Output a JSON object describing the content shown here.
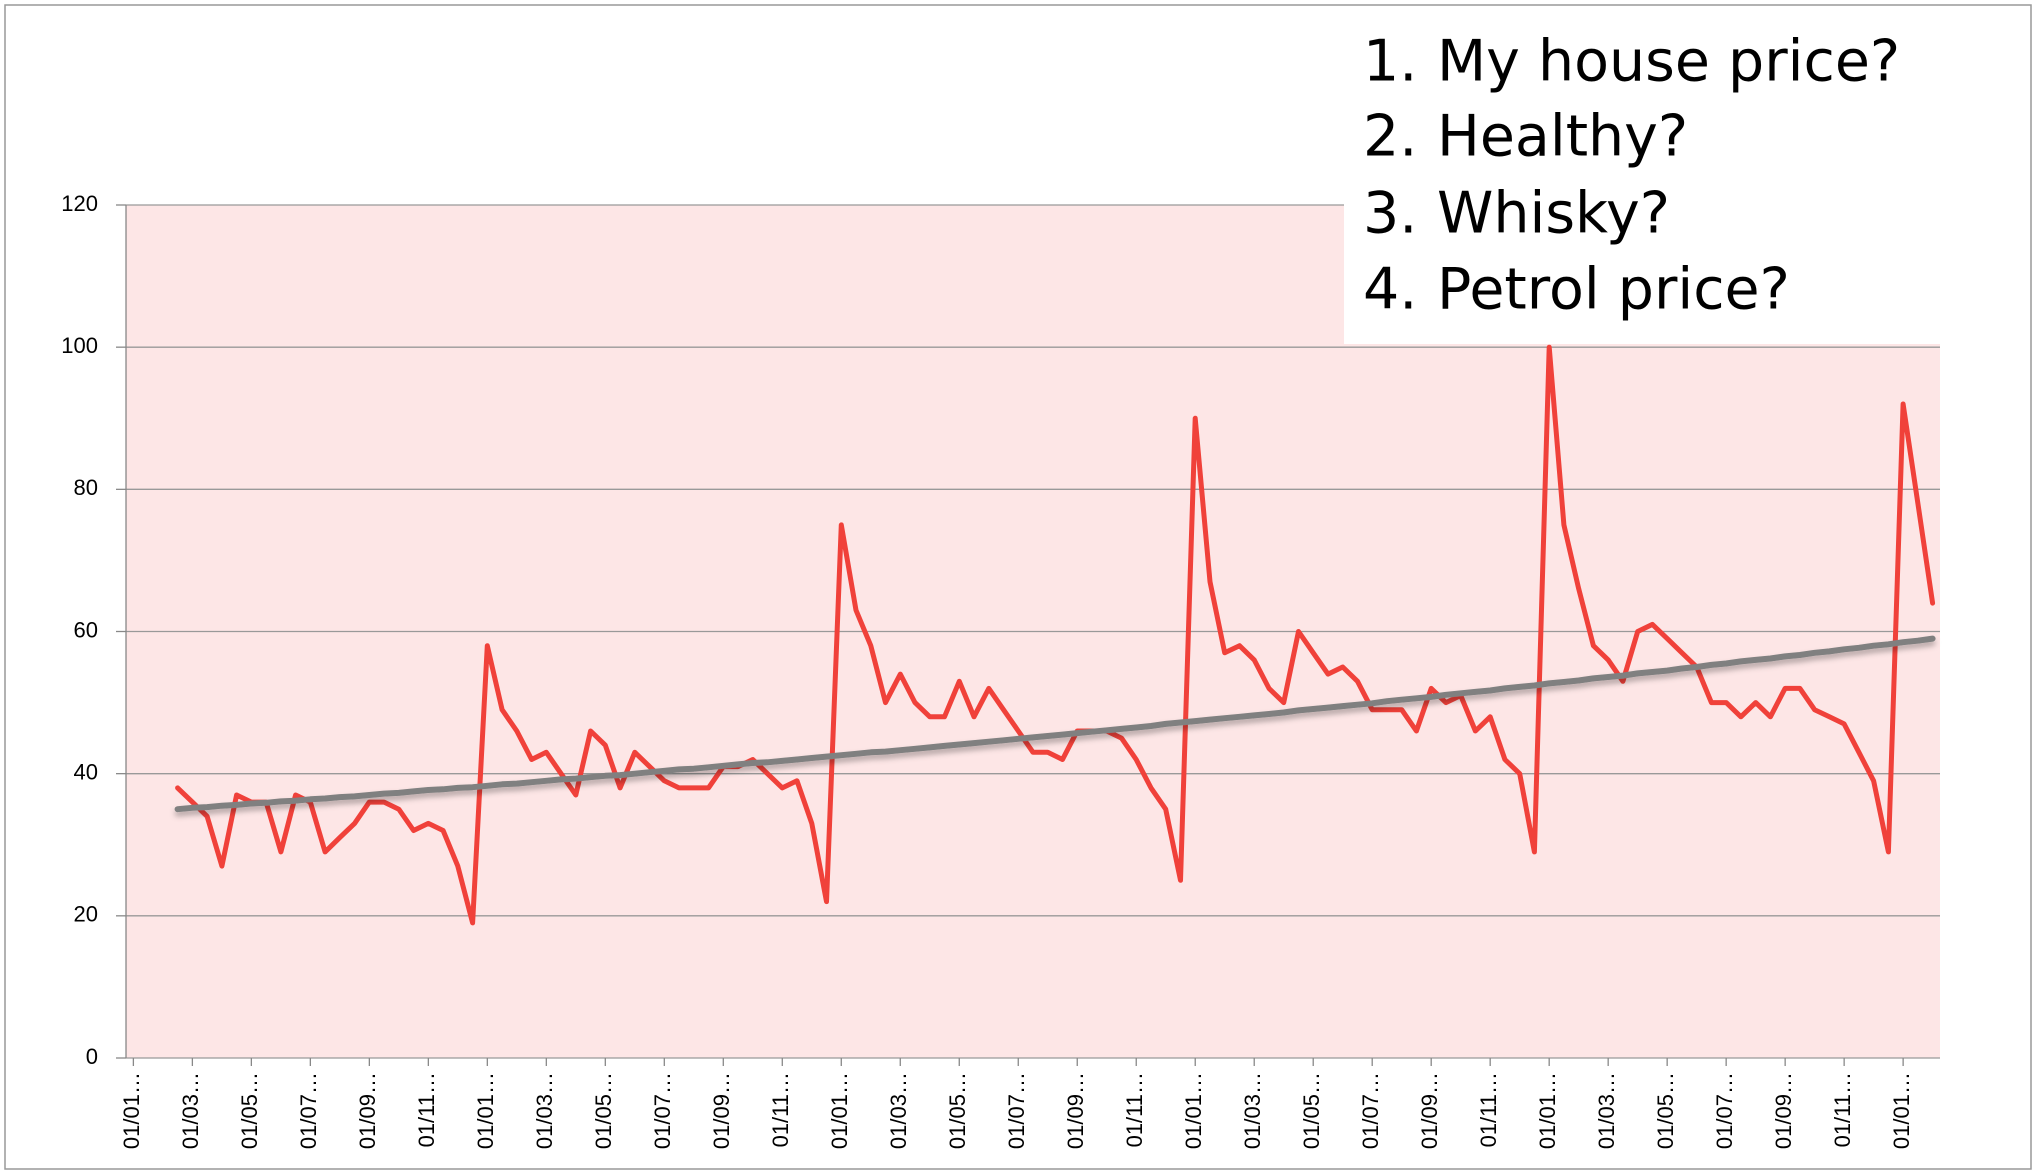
{
  "chart_data": {
    "type": "line",
    "categories": [
      "01/01…",
      null,
      null,
      null,
      "01/03…",
      null,
      null,
      null,
      "01/05…",
      null,
      null,
      null,
      "01/07…",
      null,
      null,
      null,
      "01/09…",
      null,
      null,
      null,
      "01/11…",
      null,
      null,
      null,
      "01/01…",
      null,
      null,
      null,
      "01/03…",
      null,
      null,
      null,
      "01/05…",
      null,
      null,
      null,
      "01/07…",
      null,
      null,
      null,
      "01/09…",
      null,
      null,
      null,
      "01/11…",
      null,
      null,
      null,
      "01/01…",
      null,
      null,
      null,
      "01/03…",
      null,
      null,
      null,
      "01/05…",
      null,
      null,
      null,
      "01/07…",
      null,
      null,
      null,
      "01/09…",
      null,
      null,
      null,
      "01/11…",
      null,
      null,
      null,
      "01/01…",
      null,
      null,
      null,
      "01/03…",
      null,
      null,
      null,
      "01/05…",
      null,
      null,
      null,
      "01/07…",
      null,
      null,
      null,
      "01/09…",
      null,
      null,
      null,
      "01/11…",
      null,
      null,
      null,
      "01/01…",
      null,
      null,
      null,
      "01/03…",
      null,
      null,
      null,
      "01/05…",
      null,
      null,
      null,
      "01/07…",
      null,
      null,
      null,
      "01/09…",
      null,
      null,
      null,
      "01/11…",
      null,
      null,
      null,
      "01/01…",
      null,
      null
    ],
    "series": [
      {
        "color": "#f0413a",
        "values": [
          null,
          null,
          null,
          38,
          36,
          34,
          27,
          37,
          36,
          36,
          29,
          37,
          36,
          29,
          31,
          33,
          36,
          36,
          35,
          32,
          33,
          32,
          27,
          19,
          58,
          49,
          46,
          42,
          43,
          40,
          37,
          46,
          44,
          38,
          43,
          41,
          39,
          38,
          38,
          38,
          41,
          41,
          42,
          40,
          38,
          39,
          33,
          22,
          75,
          63,
          58,
          50,
          54,
          50,
          48,
          48,
          53,
          48,
          52,
          49,
          46,
          43,
          43,
          42,
          46,
          46,
          46,
          45,
          42,
          38,
          35,
          25,
          90,
          67,
          57,
          58,
          56,
          52,
          50,
          60,
          57,
          54,
          55,
          53,
          49,
          49,
          49,
          46,
          52,
          50,
          51,
          46,
          48,
          42,
          40,
          29,
          100,
          75,
          66,
          58,
          56,
          53,
          60,
          61,
          59,
          57,
          55,
          50,
          50,
          48,
          50,
          48,
          52,
          52,
          49,
          48,
          47,
          43,
          39,
          29,
          92,
          78,
          64
        ]
      },
      {
        "color": "#808080",
        "values": [
          null,
          null,
          null,
          35.0,
          35.2,
          35.3,
          35.5,
          35.6,
          35.8,
          35.9,
          36.1,
          36.2,
          36.4,
          36.5,
          36.7,
          36.8,
          37.0,
          37.2,
          37.3,
          37.5,
          37.7,
          37.8,
          38.0,
          38.1,
          38.3,
          38.5,
          38.6,
          38.8,
          39.0,
          39.2,
          39.3,
          39.5,
          39.7,
          39.8,
          40.0,
          40.2,
          40.4,
          40.6,
          40.7,
          40.9,
          41.1,
          41.3,
          41.5,
          41.6,
          41.8,
          42.0,
          42.2,
          42.4,
          42.6,
          42.8,
          43.0,
          43.1,
          43.3,
          43.5,
          43.7,
          43.9,
          44.1,
          44.3,
          44.5,
          44.7,
          44.9,
          45.1,
          45.3,
          45.5,
          45.7,
          45.9,
          46.1,
          46.3,
          46.5,
          46.7,
          47.0,
          47.2,
          47.4,
          47.6,
          47.8,
          48.0,
          48.2,
          48.4,
          48.6,
          48.9,
          49.1,
          49.3,
          49.5,
          49.7,
          49.9,
          50.2,
          50.4,
          50.6,
          50.8,
          51.1,
          51.3,
          51.5,
          51.7,
          52.0,
          52.2,
          52.4,
          52.7,
          52.9,
          53.1,
          53.4,
          53.6,
          53.8,
          54.1,
          54.3,
          54.5,
          54.8,
          55.0,
          55.3,
          55.5,
          55.8,
          56.0,
          56.2,
          56.5,
          56.7,
          57.0,
          57.2,
          57.5,
          57.7,
          58.0,
          58.2,
          58.5,
          58.7,
          59.0
        ]
      }
    ],
    "ylim": [
      0,
      120
    ],
    "yticks": [
      0,
      20,
      40,
      60,
      80,
      100,
      120
    ],
    "grid": true,
    "annotations": [
      "1.",
      "My house price?",
      "2.",
      "Healthy?",
      "3.",
      "Whisky?",
      "4.",
      "Petrol price?"
    ]
  }
}
